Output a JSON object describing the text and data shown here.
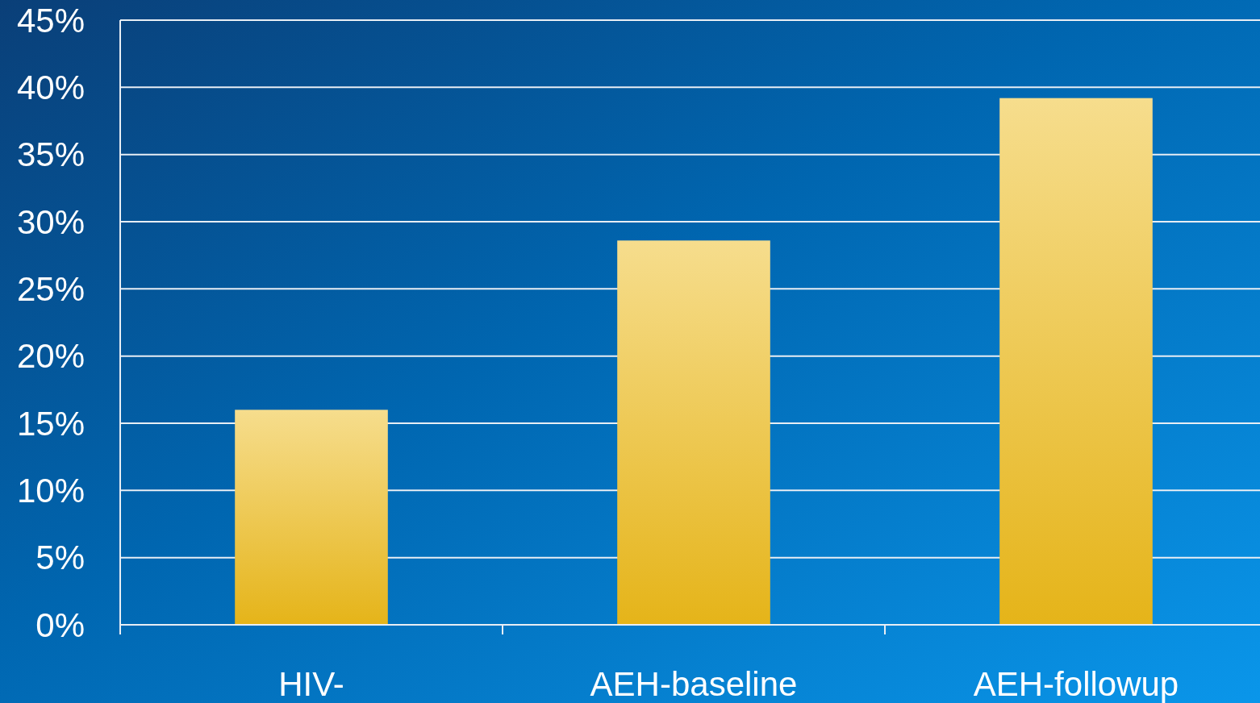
{
  "chart_data": {
    "type": "bar",
    "categories": [
      "HIV-",
      "AEH-baseline",
      "AEH-followup"
    ],
    "values": [
      16,
      28.6,
      39.2
    ],
    "color": "#edbb1a",
    "ylim": [
      0,
      45
    ],
    "yticks": [
      {
        "value": 0,
        "label": "0%"
      },
      {
        "value": 5,
        "label": "5%"
      },
      {
        "value": 10,
        "label": "10%"
      },
      {
        "value": 15,
        "label": "15%"
      },
      {
        "value": 20,
        "label": "20%"
      },
      {
        "value": 25,
        "label": "25%"
      },
      {
        "value": 30,
        "label": "30%"
      },
      {
        "value": 35,
        "label": "35%"
      },
      {
        "value": 40,
        "label": "40%"
      },
      {
        "value": 45,
        "label": "45%"
      }
    ],
    "grid": "y"
  }
}
